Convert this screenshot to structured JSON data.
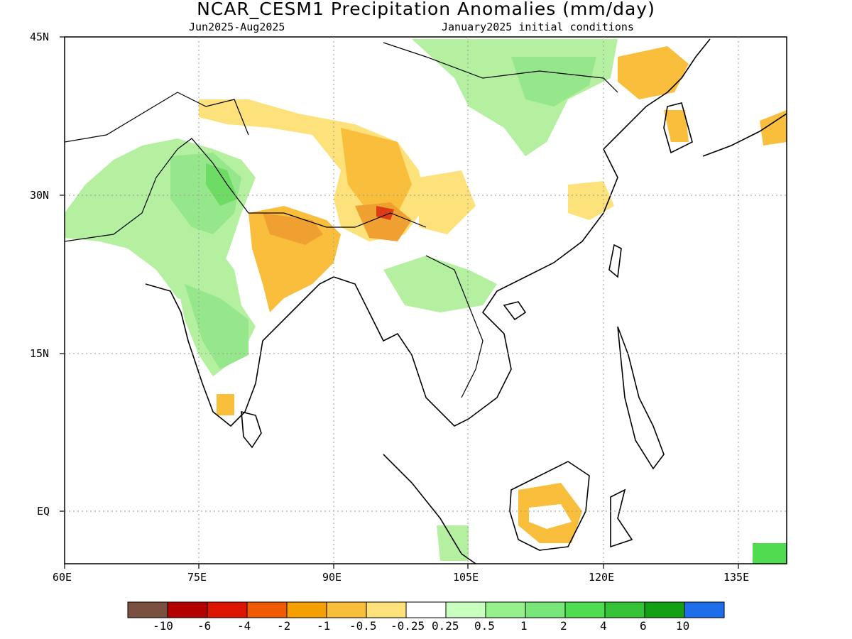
{
  "header": {
    "title": "NCAR_CESM1 Precipitation Anomalies (mm/day)",
    "period": "Jun2025-Aug2025",
    "init": "January2025 initial conditions"
  },
  "axes": {
    "lat_labels": [
      "45N",
      "30N",
      "15N",
      "EQ"
    ],
    "lon_labels": [
      "60E",
      "75E",
      "90E",
      "105E",
      "120E",
      "135E"
    ]
  },
  "colorbar": {
    "colors": [
      "#7a5040",
      "#b40000",
      "#dc1400",
      "#f05a00",
      "#f5a000",
      "#f8be3c",
      "#fde17a",
      "#ffffff",
      "#c8ffbe",
      "#96f08c",
      "#78e678",
      "#50dc50",
      "#37c337",
      "#14a014",
      "#1e6eeb"
    ],
    "labels": [
      "-10",
      "-6",
      "-4",
      "-2",
      "-1",
      "-0.5",
      "-0.25",
      "0.25",
      "0.5",
      "1",
      "2",
      "4",
      "6",
      "10"
    ]
  },
  "legend_levels": {
    "orange_strong": "#f0a030",
    "orange": "#f8be3c",
    "yellow": "#fde17a",
    "red": "#dc3c14",
    "green_light": "#b4f0a0",
    "green": "#96e68c",
    "green_mid": "#6edc64",
    "green_dark": "#46d246"
  }
}
